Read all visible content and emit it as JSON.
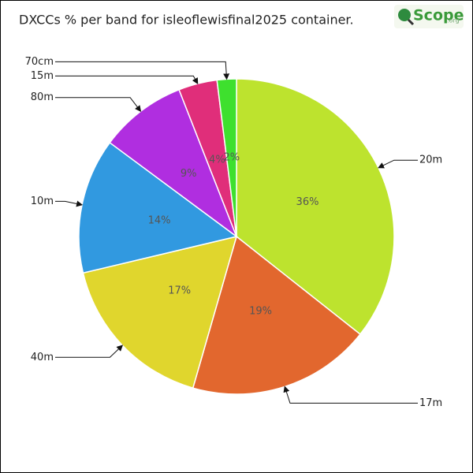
{
  "logo": {
    "text": "Scope",
    "suffix": ".org"
  },
  "chart_data": {
    "type": "pie",
    "title": "DXCCs % per band for isleoflewisfinal2025 container.",
    "categories": [
      "20m",
      "17m",
      "40m",
      "10m",
      "80m",
      "15m",
      "70cm"
    ],
    "values": [
      36,
      19,
      17,
      14,
      9,
      4,
      2
    ],
    "value_labels": [
      "36%",
      "19%",
      "17%",
      "14%",
      "9%",
      "4%",
      "2%"
    ],
    "colors": [
      "#bde32e",
      "#e2672e",
      "#e0d62d",
      "#3199e0",
      "#b02ee0",
      "#e02e7a",
      "#3ee02e"
    ]
  }
}
